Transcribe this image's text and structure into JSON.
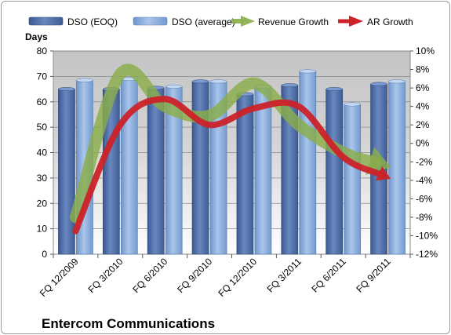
{
  "chart_data": {
    "type": "bar",
    "title": "Entercom Communications",
    "ylabel": "Days",
    "ylim": [
      0,
      80
    ],
    "yticks": [
      0,
      10,
      20,
      30,
      40,
      50,
      60,
      70,
      80
    ],
    "y2lim": [
      -12,
      10
    ],
    "y2ticks": [
      "-12%",
      "-10%",
      "-8%",
      "-6%",
      "-4%",
      "-2%",
      "0%",
      "2%",
      "4%",
      "6%",
      "8%",
      "10%"
    ],
    "y2values": [
      -12,
      -10,
      -8,
      -6,
      -4,
      -2,
      0,
      2,
      4,
      6,
      8,
      10
    ],
    "categories": [
      "FQ 12/2009",
      "FQ 3/2010",
      "FQ 6/2010",
      "FQ 9/2010",
      "FQ 12/2010",
      "FQ 3/2011",
      "FQ 6/2011",
      "FQ 9/2011"
    ],
    "series": [
      {
        "name": "DSO (EOQ)",
        "kind": "bar",
        "values": [
          65,
          65,
          65.5,
          68,
          63,
          66.5,
          65,
          67
        ]
      },
      {
        "name": "DSO (average)",
        "kind": "bar",
        "values": [
          68.5,
          69,
          66,
          68,
          66,
          72,
          59,
          68
        ]
      },
      {
        "name": "Revenue Growth",
        "kind": "line",
        "axis": "secondary",
        "values": [
          -8,
          7.5,
          4,
          3,
          6.5,
          2,
          -1,
          -2.5
        ]
      },
      {
        "name": "AR Growth",
        "kind": "line",
        "axis": "secondary",
        "values": [
          -9.5,
          2,
          4.8,
          2,
          3.8,
          4,
          -1.5,
          -3.7
        ]
      }
    ],
    "colors": {
      "bar_eoq": "#4f6fa8",
      "bar_avg": "#8fb3e0",
      "revenue_growth": "#8aad4a",
      "ar_growth": "#cc2229"
    },
    "grid": true,
    "legend_position": "top"
  }
}
